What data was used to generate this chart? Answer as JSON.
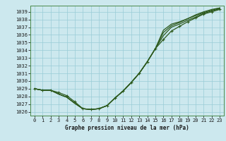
{
  "xlabel": "Graphe pression niveau de la mer (hPa)",
  "background_color": "#cce8ee",
  "grid_color": "#99ccd6",
  "line_color": "#2d5a1e",
  "ylim": [
    1025.5,
    1039.8
  ],
  "xlim": [
    -0.5,
    23.5
  ],
  "yticks": [
    1026,
    1027,
    1028,
    1029,
    1030,
    1031,
    1032,
    1033,
    1034,
    1035,
    1036,
    1037,
    1038,
    1039
  ],
  "xticks": [
    0,
    1,
    2,
    3,
    4,
    5,
    6,
    7,
    8,
    9,
    10,
    11,
    12,
    13,
    14,
    15,
    16,
    17,
    18,
    19,
    20,
    21,
    22,
    23
  ],
  "series": [
    [
      1029.0,
      1028.8,
      1028.8,
      1028.5,
      1028.1,
      1027.3,
      1026.4,
      1026.3,
      1026.4,
      1026.8,
      1027.8,
      1028.7,
      1029.8,
      1031.0,
      1032.5,
      1034.2,
      1035.4,
      1036.5,
      1037.1,
      1037.7,
      1038.2,
      1038.7,
      1039.0,
      1039.3
    ],
    [
      1029.0,
      1028.8,
      1028.8,
      1028.3,
      1027.9,
      1027.1,
      1026.4,
      1026.3,
      1026.4,
      1026.8,
      1027.8,
      1028.7,
      1029.8,
      1031.0,
      1032.5,
      1034.2,
      1035.9,
      1037.0,
      1037.4,
      1037.9,
      1038.3,
      1038.8,
      1039.1,
      1039.4
    ],
    [
      1029.0,
      1028.8,
      1028.8,
      1028.3,
      1027.9,
      1027.1,
      1026.4,
      1026.3,
      1026.4,
      1026.8,
      1027.8,
      1028.7,
      1029.8,
      1031.0,
      1032.5,
      1034.2,
      1036.3,
      1037.2,
      1037.6,
      1038.1,
      1038.5,
      1038.9,
      1039.2,
      1039.5
    ],
    [
      1029.0,
      1028.8,
      1028.8,
      1028.3,
      1027.9,
      1027.1,
      1026.4,
      1026.3,
      1026.4,
      1026.8,
      1027.8,
      1028.7,
      1029.8,
      1031.0,
      1032.5,
      1034.2,
      1036.6,
      1037.4,
      1037.7,
      1038.1,
      1038.6,
      1039.0,
      1039.3,
      1039.5
    ]
  ],
  "marked_series_idx": [
    0
  ],
  "marker": "+",
  "markersize": 3.5,
  "linewidth": 0.9,
  "tick_fontsize": 5.0,
  "xlabel_fontsize": 5.5,
  "figsize": [
    3.2,
    2.0
  ],
  "dpi": 100
}
